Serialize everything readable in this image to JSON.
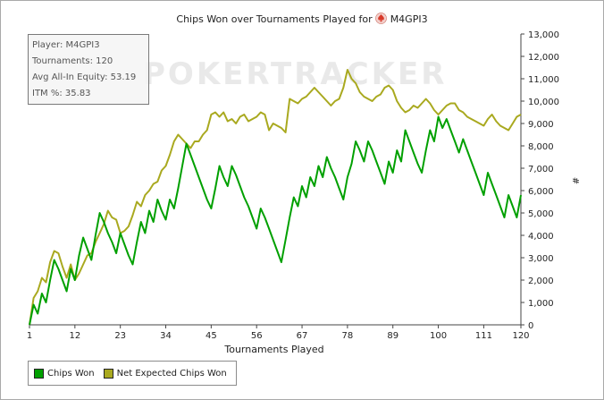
{
  "window": {
    "title": "Chips Won over Tournaments Played for",
    "player_name": "M4GPI3"
  },
  "info": {
    "player": "Player: M4GPI3",
    "tournaments": "Tournaments: 120",
    "avg_equity": "Avg All-In Equity: 53.19",
    "itm": "ITM %: 35.83"
  },
  "watermark": "POKERTRACKER",
  "legend": {
    "chips_won": "Chips Won",
    "net_expected": "Net Expected Chips Won"
  },
  "colors": {
    "chips_won": "#00a000",
    "net_expected": "#a9a91f",
    "suit": "#d83a2a"
  },
  "chart_data": {
    "type": "line",
    "title": "Chips Won over Tournaments Played for M4GPI3",
    "xlabel": "Tournaments Played",
    "ylabel": "#",
    "xlim": [
      1,
      120
    ],
    "ylim": [
      0,
      13000
    ],
    "x_ticks": [
      1,
      12,
      23,
      34,
      45,
      56,
      67,
      78,
      89,
      100,
      111,
      120
    ],
    "y_ticks": [
      0,
      1000,
      2000,
      3000,
      4000,
      5000,
      6000,
      7000,
      8000,
      9000,
      10000,
      11000,
      12000,
      13000
    ],
    "y_tick_labels": [
      "0",
      "1,000",
      "2,000",
      "3,000",
      "4,000",
      "5,000",
      "6,000",
      "7,000",
      "8,000",
      "9,000",
      "10,000",
      "11,000",
      "12,000",
      "13,000"
    ],
    "y_axis_side": "right",
    "grid": false,
    "legend_position": "bottom-left",
    "series": [
      {
        "name": "Chips Won",
        "x": [
          1,
          2,
          3,
          4,
          5,
          6,
          7,
          8,
          9,
          10,
          11,
          12,
          13,
          14,
          15,
          16,
          17,
          18,
          19,
          20,
          21,
          22,
          23,
          24,
          25,
          26,
          27,
          28,
          29,
          30,
          31,
          32,
          33,
          34,
          35,
          36,
          37,
          38,
          39,
          40,
          41,
          42,
          43,
          44,
          45,
          46,
          47,
          48,
          49,
          50,
          51,
          52,
          53,
          54,
          55,
          56,
          57,
          58,
          59,
          60,
          61,
          62,
          63,
          64,
          65,
          66,
          67,
          68,
          69,
          70,
          71,
          72,
          73,
          74,
          75,
          76,
          77,
          78,
          79,
          80,
          81,
          82,
          83,
          84,
          85,
          86,
          87,
          88,
          89,
          90,
          91,
          92,
          93,
          94,
          95,
          96,
          97,
          98,
          99,
          100,
          101,
          102,
          103,
          104,
          105,
          106,
          107,
          108,
          109,
          110,
          111,
          112,
          113,
          114,
          115,
          116,
          117,
          118,
          119,
          120
        ],
        "values": [
          0,
          900,
          500,
          1400,
          1000,
          2000,
          2900,
          2500,
          2000,
          1500,
          2500,
          2000,
          3100,
          3900,
          3400,
          2900,
          4000,
          5000,
          4600,
          4100,
          3700,
          3200,
          4100,
          3600,
          3100,
          2700,
          3700,
          4600,
          4100,
          5100,
          4600,
          5600,
          5100,
          4700,
          5600,
          5200,
          6100,
          7100,
          8100,
          7600,
          7100,
          6600,
          6100,
          5600,
          5200,
          6100,
          7100,
          6600,
          6200,
          7100,
          6700,
          6200,
          5700,
          5300,
          4800,
          4300,
          5200,
          4800,
          4300,
          3800,
          3300,
          2800,
          3800,
          4800,
          5700,
          5300,
          6200,
          5700,
          6600,
          6200,
          7100,
          6600,
          7500,
          7000,
          6600,
          6100,
          5600,
          6600,
          7200,
          8200,
          7800,
          7300,
          8200,
          7800,
          7300,
          6800,
          6300,
          7300,
          6800,
          7800,
          7300,
          8700,
          8200,
          7700,
          7200,
          6800,
          7800,
          8700,
          8200,
          9300,
          8800,
          9200,
          8700,
          8200,
          7700,
          8300,
          7800,
          7300,
          6800,
          6300,
          5800,
          6800,
          6300,
          5800,
          5300,
          4800,
          5800,
          5300,
          4800,
          5800
        ]
      },
      {
        "name": "Net Expected Chips Won",
        "x": [
          1,
          2,
          3,
          4,
          5,
          6,
          7,
          8,
          9,
          10,
          11,
          12,
          13,
          14,
          15,
          16,
          17,
          18,
          19,
          20,
          21,
          22,
          23,
          24,
          25,
          26,
          27,
          28,
          29,
          30,
          31,
          32,
          33,
          34,
          35,
          36,
          37,
          38,
          39,
          40,
          41,
          42,
          43,
          44,
          45,
          46,
          47,
          48,
          49,
          50,
          51,
          52,
          53,
          54,
          55,
          56,
          57,
          58,
          59,
          60,
          61,
          62,
          63,
          64,
          65,
          66,
          67,
          68,
          69,
          70,
          71,
          72,
          73,
          74,
          75,
          76,
          77,
          78,
          79,
          80,
          81,
          82,
          83,
          84,
          85,
          86,
          87,
          88,
          89,
          90,
          91,
          92,
          93,
          94,
          95,
          96,
          97,
          98,
          99,
          100,
          101,
          102,
          103,
          104,
          105,
          106,
          107,
          108,
          109,
          110,
          111,
          112,
          113,
          114,
          115,
          116,
          117,
          118,
          119,
          120
        ],
        "values": [
          0,
          1200,
          1500,
          2100,
          1900,
          2800,
          3300,
          3200,
          2600,
          2100,
          2700,
          2000,
          2300,
          2700,
          3100,
          3200,
          3700,
          4100,
          4500,
          5100,
          4800,
          4700,
          4100,
          4200,
          4400,
          4900,
          5500,
          5300,
          5800,
          6000,
          6300,
          6400,
          6900,
          7100,
          7600,
          8200,
          8500,
          8300,
          8100,
          7900,
          8200,
          8200,
          8500,
          8700,
          9400,
          9500,
          9300,
          9500,
          9100,
          9200,
          9000,
          9300,
          9400,
          9100,
          9200,
          9300,
          9500,
          9400,
          8700,
          9000,
          8900,
          8800,
          8600,
          10100,
          10000,
          9900,
          10100,
          10200,
          10400,
          10600,
          10400,
          10200,
          10000,
          9800,
          10000,
          10100,
          10600,
          11400,
          11000,
          10800,
          10400,
          10200,
          10100,
          10000,
          10200,
          10300,
          10600,
          10700,
          10500,
          10000,
          9700,
          9500,
          9600,
          9800,
          9700,
          9900,
          10100,
          9900,
          9600,
          9400,
          9600,
          9800,
          9900,
          9900,
          9600,
          9500,
          9300,
          9200,
          9100,
          9000,
          8900,
          9200,
          9400,
          9100,
          8900,
          8800,
          8700,
          9000,
          9300,
          9400
        ]
      }
    ]
  }
}
